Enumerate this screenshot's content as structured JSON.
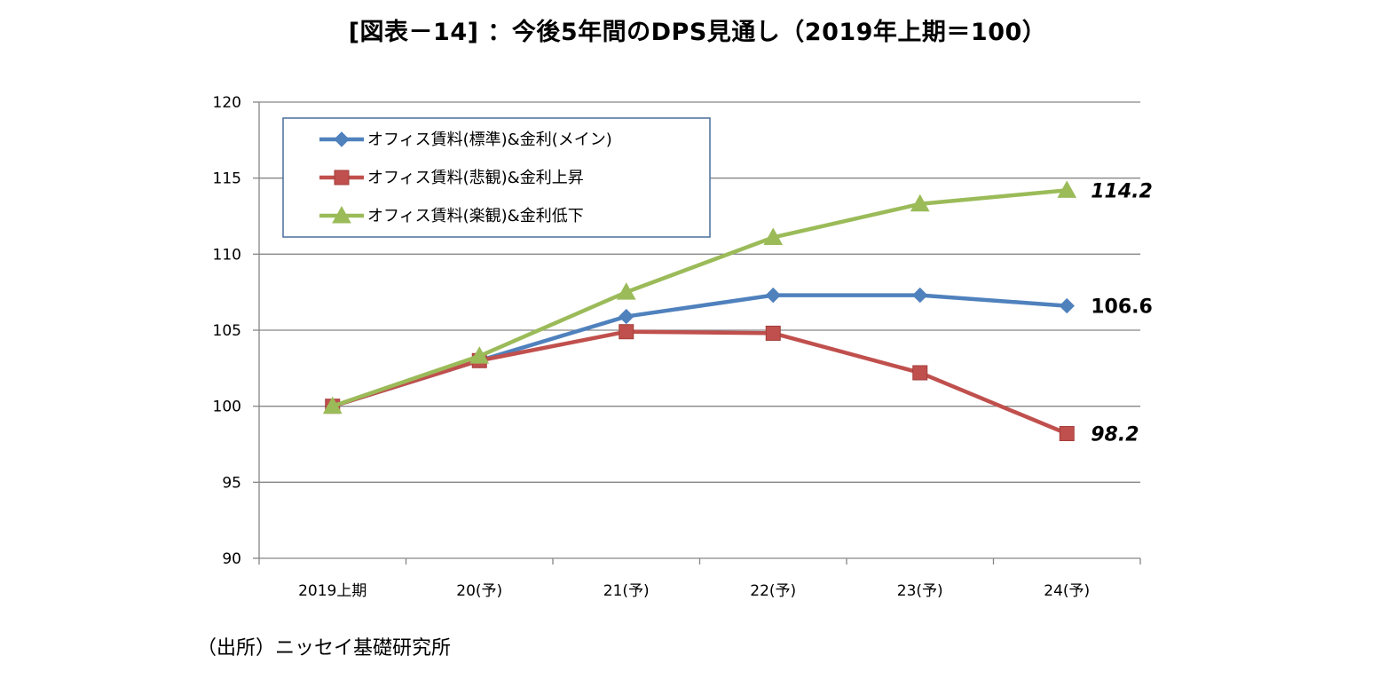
{
  "chart_data": {
    "type": "line",
    "title": "[図表－14] ：今後5年間のDPS見通し（2019年上期＝100）",
    "xlabel": "",
    "ylabel": "",
    "categories": [
      "2019上期",
      "20(予)",
      "21(予)",
      "22(予)",
      "23(予)",
      "24(予)"
    ],
    "ylim": [
      90,
      120
    ],
    "yticks": [
      90,
      95,
      100,
      105,
      110,
      115,
      120
    ],
    "grid": true,
    "legend": "top-left",
    "series": [
      {
        "name": "オフィス賃料(標準)&金利(メイン)",
        "color": "#4f81bd",
        "marker": "diamond",
        "values": [
          100,
          103.0,
          105.9,
          107.3,
          107.3,
          106.6
        ],
        "end_label": "106.6",
        "end_label_italic": false
      },
      {
        "name": "オフィス賃料(悲観)&金利上昇",
        "color": "#c0504d",
        "marker": "square",
        "values": [
          100,
          103.0,
          104.9,
          104.8,
          102.2,
          98.2
        ],
        "end_label": "98.2",
        "end_label_italic": true
      },
      {
        "name": "オフィス賃料(楽観)&金利低下",
        "color": "#9bbb59",
        "marker": "triangle",
        "values": [
          100,
          103.3,
          107.5,
          111.1,
          113.3,
          114.2
        ],
        "end_label": "114.2",
        "end_label_italic": true
      }
    ]
  },
  "source": "（出所）ニッセイ基礎研究所"
}
